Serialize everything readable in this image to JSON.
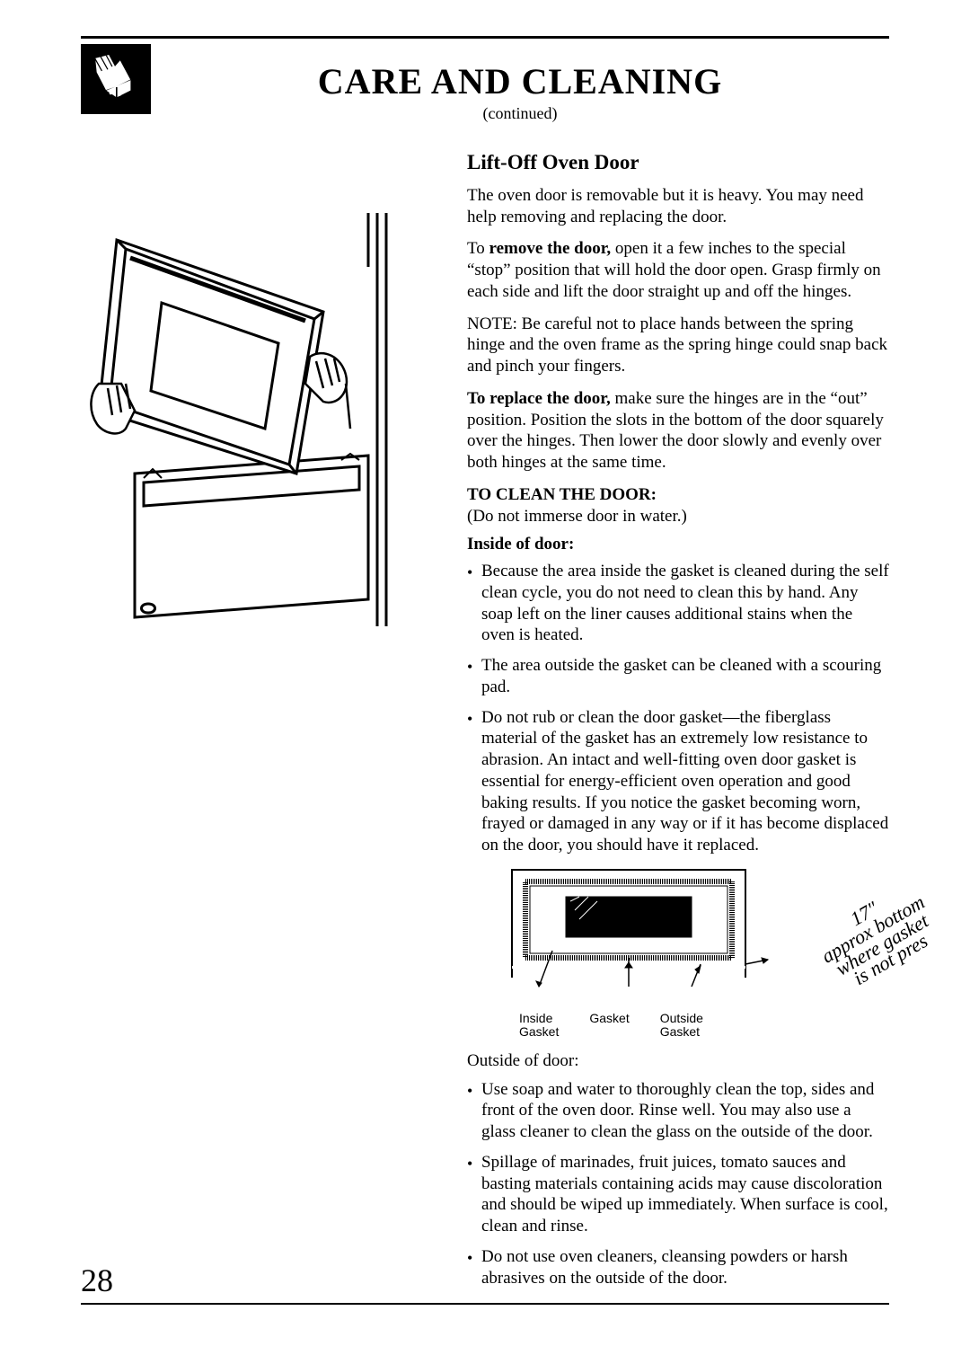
{
  "header": {
    "title": "CARE AND CLEANING",
    "continued": "(continued)"
  },
  "section": {
    "title": "Lift-Off Oven Door",
    "intro": "The oven door is removable but it is heavy. You may need help removing and replacing the door.",
    "remove_lead": "To ",
    "remove_bold": "remove the door,",
    "remove_rest": " open it a few inches to the special “stop” position that will hold the door open. Grasp firmly on each side and lift the door straight up and off the hinges.",
    "note": "NOTE: Be careful not to place hands between the spring hinge and the oven frame as the spring hinge could snap back and pinch your fingers.",
    "replace_bold": "To replace the door,",
    "replace_rest": " make sure the hinges are in the “out” position. Position the slots in the bottom of the door squarely over the hinges. Then lower the door slowly and evenly over both hinges at the same time.",
    "clean_header": "TO CLEAN THE DOOR:",
    "clean_sub": "(Do not immerse door in water.)",
    "inside_header": "Inside of door:",
    "inside_bullets": [
      "Because the area inside the gasket is cleaned during the self clean cycle, you do not need to clean this by hand. Any soap left on the liner causes additional stains when the oven is heated.",
      "The area outside the gasket can be cleaned with a scouring pad.",
      "Do not rub or clean the door gasket—the fiberglass material of the gasket has an extremely low resistance to abrasion. An intact and well-fitting oven door gasket is essential for energy-efficient oven operation and good baking results. If you notice the gasket becoming worn, frayed or damaged in any way or if it has become displaced on the door, you should have it replaced."
    ],
    "diagram_labels": {
      "inside": "Inside\nGasket",
      "gasket": "Gasket",
      "outside": "Outside\nGasket"
    },
    "handwriting": "17″\napprox bottom\nwhere gasket\nis not pres",
    "outside_header": "Outside of door:",
    "outside_bullets": [
      "Use soap and water to thoroughly clean the top, sides and front of the oven door. Rinse well. You may also use a glass cleaner to clean the glass on the outside of the door.",
      "Spillage of marinades, fruit juices, tomato sauces and basting materials containing acids may cause discoloration and should be wiped up immediately. When surface is cool, clean and rinse.",
      "Do not use oven cleaners, cleansing powders or harsh abrasives on the outside of the door."
    ]
  },
  "page_number": "28"
}
